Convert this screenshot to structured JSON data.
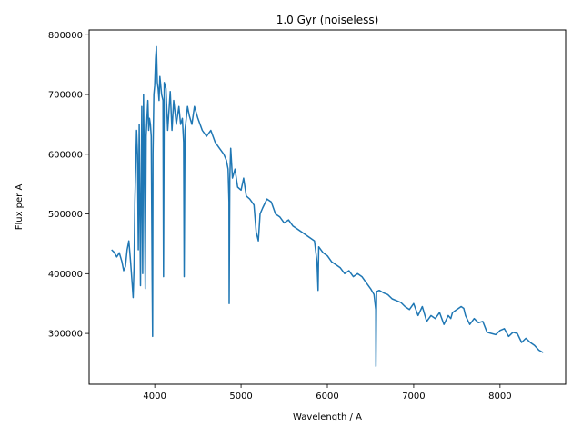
{
  "chart_data": {
    "type": "line",
    "title": "1.0 Gyr (noiseless)",
    "xlabel": "Wavelength / A",
    "ylabel": "Flux per A",
    "xlim": [
      3240,
      8760
    ],
    "ylim": [
      215000,
      808000
    ],
    "xticks": [
      4000,
      5000,
      6000,
      7000,
      8000
    ],
    "yticks": [
      300000,
      400000,
      500000,
      600000,
      700000,
      800000
    ],
    "grid": false,
    "series_color": "#1f77b4",
    "series": [
      {
        "x": [
          3500,
          3530,
          3560,
          3590,
          3620,
          3640,
          3660,
          3680,
          3700,
          3720,
          3740,
          3750,
          3760,
          3770,
          3780,
          3790,
          3800,
          3810,
          3820,
          3835,
          3850,
          3860,
          3870,
          3880,
          3890,
          3900,
          3910,
          3920,
          3930,
          3940,
          3950,
          3960,
          3970,
          3975,
          3980,
          3990,
          4000,
          4010,
          4020,
          4030,
          4040,
          4050,
          4060,
          4080,
          4095,
          4102,
          4110,
          4130,
          4150,
          4180,
          4200,
          4220,
          4250,
          4280,
          4300,
          4320,
          4335,
          4341,
          4350,
          4380,
          4400,
          4430,
          4460,
          4500,
          4550,
          4600,
          4650,
          4700,
          4750,
          4800,
          4830,
          4850,
          4860,
          4862,
          4870,
          4880,
          4900,
          4930,
          4960,
          5000,
          5030,
          5060,
          5100,
          5150,
          5175,
          5200,
          5220,
          5250,
          5300,
          5350,
          5400,
          5450,
          5500,
          5550,
          5600,
          5650,
          5700,
          5750,
          5800,
          5850,
          5880,
          5893,
          5900,
          5950,
          6000,
          6050,
          6100,
          6150,
          6200,
          6250,
          6300,
          6350,
          6400,
          6450,
          6500,
          6540,
          6560,
          6563,
          6570,
          6600,
          6650,
          6700,
          6750,
          6800,
          6850,
          6900,
          6950,
          7000,
          7050,
          7100,
          7150,
          7200,
          7250,
          7300,
          7350,
          7400,
          7430,
          7450,
          7500,
          7550,
          7580,
          7600,
          7650,
          7700,
          7750,
          7800,
          7850,
          7900,
          7950,
          8000,
          8050,
          8100,
          8150,
          8200,
          8250,
          8300,
          8350,
          8400,
          8450,
          8500
        ],
        "y": [
          440000,
          436000,
          428000,
          435000,
          420000,
          405000,
          412000,
          440000,
          455000,
          420000,
          380000,
          360000,
          410000,
          520000,
          580000,
          640000,
          600000,
          440000,
          650000,
          380000,
          680000,
          400000,
          700000,
          560000,
          375000,
          630000,
          660000,
          690000,
          640000,
          660000,
          650000,
          630000,
          390000,
          295000,
          600000,
          700000,
          715000,
          760000,
          780000,
          720000,
          710000,
          690000,
          730000,
          700000,
          690000,
          395000,
          720000,
          710000,
          640000,
          705000,
          640000,
          690000,
          650000,
          680000,
          650000,
          660000,
          620000,
          395000,
          640000,
          680000,
          665000,
          650000,
          680000,
          660000,
          640000,
          630000,
          640000,
          620000,
          610000,
          600000,
          590000,
          575000,
          520000,
          350000,
          560000,
          610000,
          560000,
          575000,
          545000,
          540000,
          560000,
          530000,
          525000,
          515000,
          470000,
          455000,
          500000,
          510000,
          525000,
          520000,
          500000,
          495000,
          485000,
          490000,
          480000,
          475000,
          470000,
          465000,
          460000,
          455000,
          420000,
          372000,
          445000,
          435000,
          430000,
          420000,
          415000,
          410000,
          400000,
          405000,
          395000,
          400000,
          395000,
          385000,
          375000,
          365000,
          340000,
          245000,
          370000,
          372000,
          368000,
          365000,
          358000,
          355000,
          352000,
          345000,
          340000,
          350000,
          330000,
          345000,
          320000,
          330000,
          325000,
          335000,
          315000,
          330000,
          325000,
          335000,
          340000,
          345000,
          342000,
          330000,
          315000,
          325000,
          318000,
          320000,
          302000,
          300000,
          298000,
          305000,
          308000,
          295000,
          302000,
          300000,
          285000,
          292000,
          285000,
          280000,
          272000,
          268000
        ]
      }
    ]
  }
}
